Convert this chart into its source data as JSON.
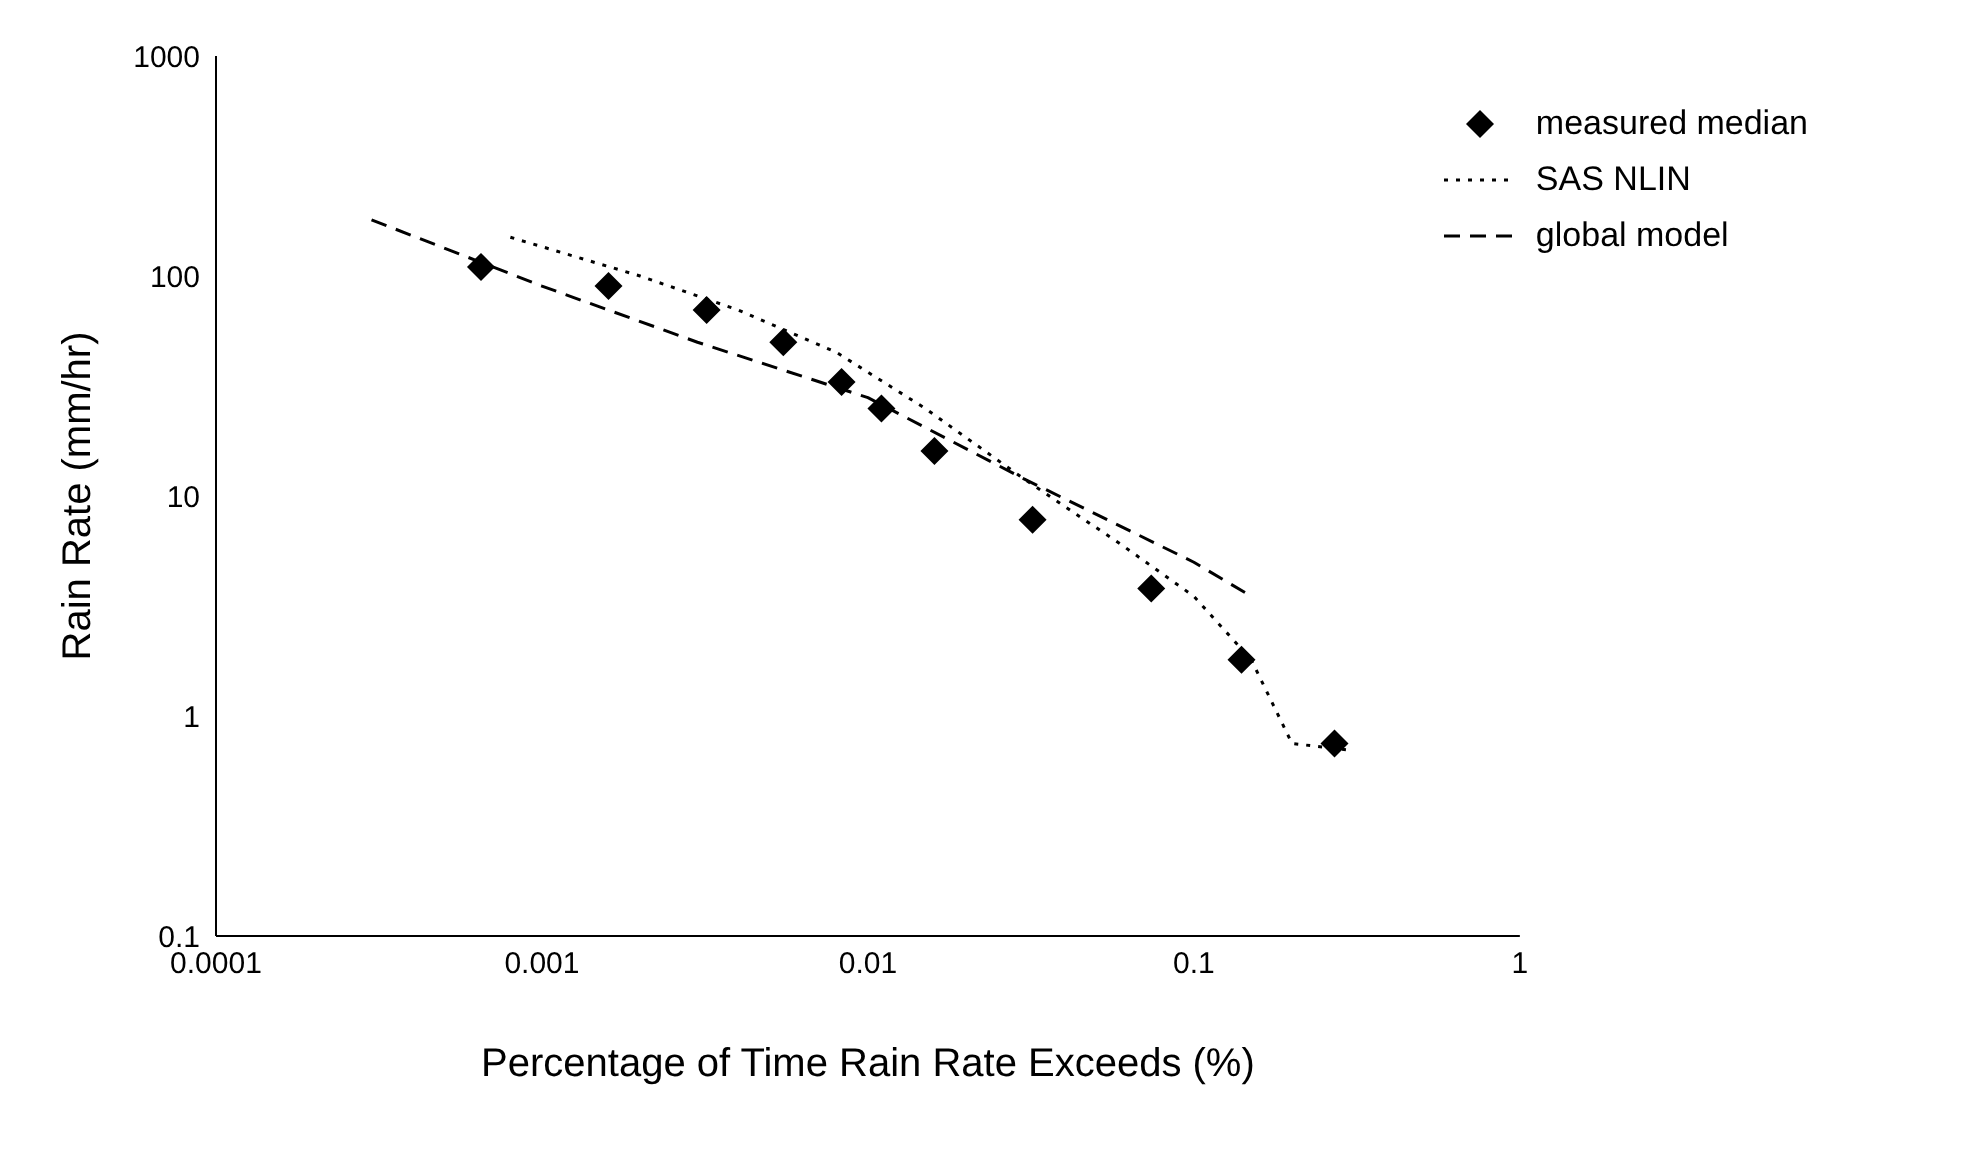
{
  "chart_data": {
    "type": "scatter",
    "xlabel": "Percentage of Time Rain Rate Exceeds (%)",
    "ylabel": "Rain Rate (mm/hr)",
    "log": "xy",
    "xlim": [
      0.0001,
      1
    ],
    "ylim": [
      0.1,
      1000
    ],
    "xticks": [
      0.0001,
      0.001,
      0.01,
      0.1,
      1
    ],
    "yticks": [
      0.1,
      1,
      10,
      100,
      1000
    ],
    "legend": "top right",
    "grid": false,
    "series": [
      {
        "name": "measured median",
        "type": "scatter",
        "marker": "diamond",
        "color": "#000000",
        "x": [
          0.00065,
          0.0016,
          0.0032,
          0.0055,
          0.0083,
          0.011,
          0.016,
          0.032,
          0.074,
          0.14,
          0.27
        ],
        "values": [
          110,
          90,
          70,
          50,
          33,
          25,
          16,
          7.8,
          3.8,
          1.8,
          0.75
        ]
      },
      {
        "name": "SAS NLIN",
        "type": "line",
        "line_style": "dotted",
        "marker": "none",
        "color": "#000000",
        "x": [
          0.0008,
          0.002,
          0.004,
          0.008,
          0.015,
          0.03,
          0.06,
          0.1,
          0.15,
          0.2,
          0.3
        ],
        "values": [
          150,
          100,
          70,
          45,
          25,
          12,
          6,
          3.5,
          1.8,
          0.75,
          0.7
        ]
      },
      {
        "name": "global model",
        "type": "line",
        "line_style": "dashed",
        "marker": "none",
        "color": "#000000",
        "x": [
          0.0003,
          0.001,
          0.003,
          0.01,
          0.03,
          0.1,
          0.15
        ],
        "values": [
          180,
          90,
          50,
          28,
          12,
          5,
          3.5
        ]
      }
    ]
  }
}
